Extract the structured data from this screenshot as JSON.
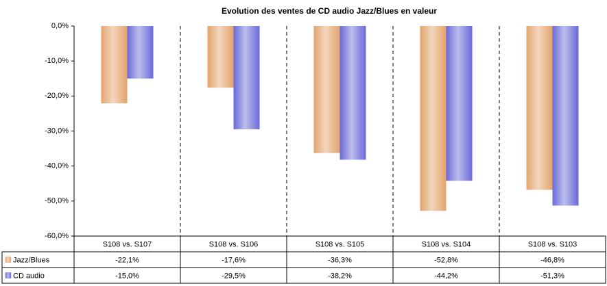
{
  "chart_data": {
    "type": "bar",
    "title": "Evolution des ventes de CD audio Jazz/Blues en valeur",
    "categories": [
      "S108 vs. S107",
      "S108 vs. S106",
      "S108 vs. S105",
      "S108 vs. S104",
      "S108 vs. S103"
    ],
    "series": [
      {
        "name": "Jazz/Blues",
        "color": "#e3a46c",
        "values": [
          -22.1,
          -17.6,
          -36.3,
          -52.8,
          -46.8
        ],
        "value_labels": [
          "-22,1%",
          "-17,6%",
          "-36,3%",
          "-52,8%",
          "-46,8%"
        ]
      },
      {
        "name": "CD audio",
        "color": "#6a6ad8",
        "values": [
          -15.0,
          -29.5,
          -38.2,
          -44.2,
          -51.3
        ],
        "value_labels": [
          "-15,0%",
          "-29,5%",
          "-38,2%",
          "-44,2%",
          "-51,3%"
        ]
      }
    ],
    "ylim": [
      -60,
      0
    ],
    "yticks": [
      {
        "value": 0,
        "label": "0,0%"
      },
      {
        "value": -10,
        "label": "-10,0%"
      },
      {
        "value": -20,
        "label": "-20,0%"
      },
      {
        "value": -30,
        "label": "-30,0%"
      },
      {
        "value": -40,
        "label": "-40,0%"
      },
      {
        "value": -50,
        "label": "-50,0%"
      },
      {
        "value": -60,
        "label": "-60,0%"
      }
    ],
    "grid": false
  }
}
